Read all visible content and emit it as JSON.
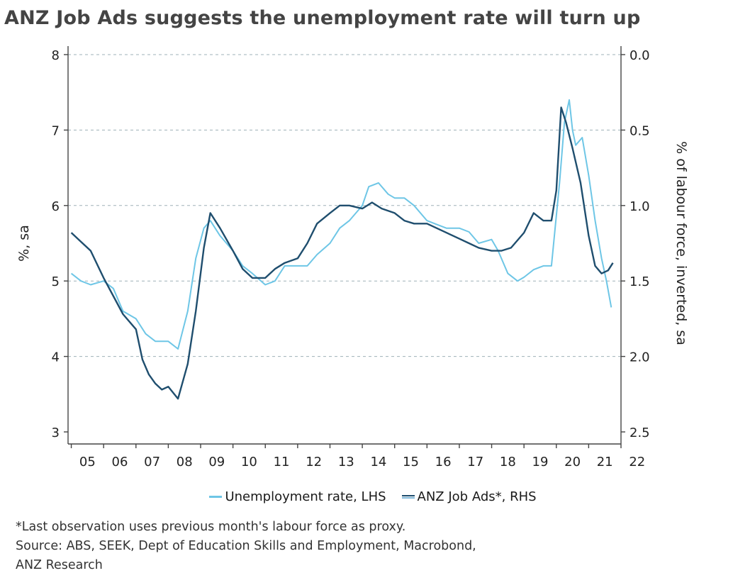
{
  "chart_data": {
    "type": "line",
    "title": "ANZ Job Ads suggests the unemployment rate will turn up",
    "ylabel_left": "%, sa",
    "ylabel_right": "% of labour force, inverted, sa",
    "ylim_left": [
      3,
      8
    ],
    "ylim_right": [
      0.0,
      2.5
    ],
    "right_axis_inverted": true,
    "x_range": [
      2004.9,
      2022.0
    ],
    "x_tick_labels": [
      "05",
      "06",
      "07",
      "08",
      "09",
      "10",
      "11",
      "12",
      "13",
      "14",
      "15",
      "16",
      "17",
      "18",
      "19",
      "20",
      "21",
      "22"
    ],
    "y_ticks_left": [
      "3",
      "4",
      "5",
      "6",
      "7",
      "8"
    ],
    "y_ticks_right": [
      "0.0",
      "0.5",
      "1.0",
      "1.5",
      "2.0",
      "2.5"
    ],
    "grid": true,
    "legend_position": "bottom",
    "colors": {
      "unemployment": "#6ec6e6",
      "job_ads": "#1f4e6e"
    },
    "series": [
      {
        "name": "Unemployment rate, LHS",
        "axis": "left",
        "x": [
          2005.0,
          2005.3,
          2005.6,
          2006.0,
          2006.3,
          2006.6,
          2007.0,
          2007.3,
          2007.6,
          2008.0,
          2008.3,
          2008.6,
          2008.85,
          2009.1,
          2009.3,
          2009.6,
          2010.0,
          2010.3,
          2010.6,
          2011.0,
          2011.3,
          2011.6,
          2012.0,
          2012.3,
          2012.6,
          2013.0,
          2013.3,
          2013.6,
          2014.0,
          2014.2,
          2014.5,
          2014.8,
          2015.0,
          2015.3,
          2015.6,
          2016.0,
          2016.3,
          2016.6,
          2017.0,
          2017.3,
          2017.6,
          2018.0,
          2018.2,
          2018.5,
          2018.8,
          2019.0,
          2019.3,
          2019.6,
          2019.85,
          2020.1,
          2020.25,
          2020.4,
          2020.5,
          2020.6,
          2020.8,
          2021.0,
          2021.2,
          2021.4,
          2021.55,
          2021.7
        ],
        "y": [
          5.1,
          5.0,
          4.95,
          5.0,
          4.9,
          4.6,
          4.5,
          4.3,
          4.2,
          4.2,
          4.1,
          4.6,
          5.3,
          5.7,
          5.8,
          5.6,
          5.4,
          5.2,
          5.1,
          4.95,
          5.0,
          5.2,
          5.2,
          5.2,
          5.35,
          5.5,
          5.7,
          5.8,
          6.0,
          6.25,
          6.3,
          6.15,
          6.1,
          6.1,
          6.0,
          5.8,
          5.75,
          5.7,
          5.7,
          5.65,
          5.5,
          5.55,
          5.4,
          5.1,
          5.0,
          5.05,
          5.15,
          5.2,
          5.2,
          6.3,
          7.1,
          7.4,
          7.0,
          6.8,
          6.9,
          6.4,
          5.8,
          5.3,
          5.0,
          4.65
        ]
      },
      {
        "name": "ANZ Job Ads*, RHS",
        "axis": "right",
        "x": [
          2005.0,
          2005.3,
          2005.6,
          2006.0,
          2006.3,
          2006.6,
          2007.0,
          2007.2,
          2007.4,
          2007.6,
          2007.8,
          2008.0,
          2008.3,
          2008.6,
          2008.85,
          2009.1,
          2009.3,
          2009.6,
          2010.0,
          2010.3,
          2010.6,
          2011.0,
          2011.3,
          2011.6,
          2012.0,
          2012.3,
          2012.6,
          2013.0,
          2013.3,
          2013.6,
          2014.0,
          2014.3,
          2014.6,
          2015.0,
          2015.3,
          2015.6,
          2016.0,
          2016.3,
          2016.6,
          2017.0,
          2017.3,
          2017.6,
          2018.0,
          2018.3,
          2018.6,
          2019.0,
          2019.3,
          2019.6,
          2019.85,
          2020.0,
          2020.15,
          2020.3,
          2020.5,
          2020.75,
          2021.0,
          2021.2,
          2021.4,
          2021.6,
          2021.75
        ],
        "y": [
          1.18,
          1.24,
          1.3,
          1.48,
          1.6,
          1.72,
          1.82,
          2.02,
          2.12,
          2.18,
          2.22,
          2.2,
          2.28,
          2.05,
          1.7,
          1.28,
          1.05,
          1.15,
          1.3,
          1.42,
          1.48,
          1.48,
          1.42,
          1.38,
          1.35,
          1.25,
          1.12,
          1.05,
          1.0,
          1.0,
          1.02,
          0.98,
          1.02,
          1.05,
          1.1,
          1.12,
          1.12,
          1.15,
          1.18,
          1.22,
          1.25,
          1.28,
          1.3,
          1.3,
          1.28,
          1.18,
          1.05,
          1.1,
          1.1,
          0.9,
          0.35,
          0.45,
          0.62,
          0.85,
          1.2,
          1.4,
          1.45,
          1.43,
          1.38
        ]
      }
    ]
  },
  "legend": {
    "item1": "Unemployment rate, LHS",
    "item2": "ANZ Job Ads*, RHS"
  },
  "notes": {
    "footnote": "*Last observation uses previous month's labour force as proxy.",
    "source_line1": "Source: ABS, SEEK, Dept of Education Skills and Employment, Macrobond,",
    "source_line2": "ANZ Research"
  }
}
